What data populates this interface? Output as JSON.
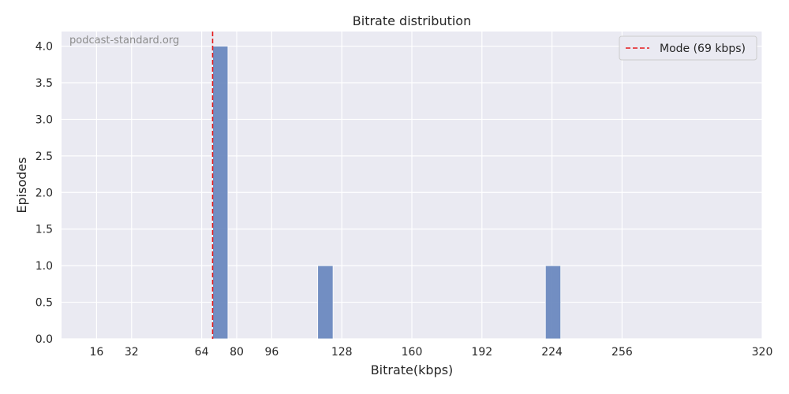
{
  "chart_data": {
    "type": "bar",
    "title": "Bitrate distribution",
    "xlabel": "Bitrate(kbps)",
    "ylabel": "Episodes",
    "watermark": "podcast-standard.org",
    "xlim": [
      0,
      320
    ],
    "ylim": [
      0,
      4.2
    ],
    "x_ticks": [
      16,
      32,
      64,
      80,
      96,
      128,
      160,
      192,
      224,
      256,
      320
    ],
    "y_ticks": [
      0.0,
      0.5,
      1.0,
      1.5,
      2.0,
      2.5,
      3.0,
      3.5,
      4.0
    ],
    "y_tick_labels": [
      "0.0",
      "0.5",
      "1.0",
      "1.5",
      "2.0",
      "2.5",
      "3.0",
      "3.5",
      "4.0"
    ],
    "grid": true,
    "bins": [
      {
        "x0": 69,
        "x1": 76,
        "count": 4
      },
      {
        "x0": 117,
        "x1": 124,
        "count": 1
      },
      {
        "x0": 221,
        "x1": 228,
        "count": 1
      }
    ],
    "reference_line": {
      "x": 69,
      "label": "Mode (69 kbps)",
      "color": "#e41a1c",
      "style": "dashed"
    },
    "legend_position": "top-right",
    "colors": {
      "bar": "#6c89bf",
      "background": "#eaeaf2",
      "grid": "#ffffff",
      "mode_line": "#e41a1c"
    }
  }
}
